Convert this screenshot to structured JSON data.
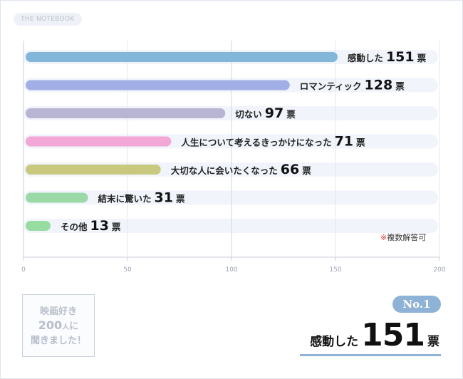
{
  "brand": "THE NOTEBOOK",
  "note": {
    "mark": "※",
    "text": "複数解答可"
  },
  "survey_badge": {
    "line1": "映画好き",
    "line2_number": "200",
    "line2_unit": "人",
    "line2_tail": "に",
    "line3": "聞きました！"
  },
  "winner": {
    "badge": "No.1",
    "label": "感動した",
    "value": "151",
    "unit": "票"
  },
  "chart_data": {
    "type": "bar",
    "orientation": "horizontal",
    "unit": "票",
    "categories": [
      "感動した",
      "ロマンティック",
      "切ない",
      "人生について考えるきっかけになった",
      "大切な人に会いたくなった",
      "結末に驚いた",
      "その他"
    ],
    "values": [
      151,
      128,
      97,
      71,
      66,
      31,
      13
    ],
    "colors": [
      "#82b7d9",
      "#a2aee6",
      "#b8b5d3",
      "#f2a7d6",
      "#c8c97e",
      "#9bd9a8",
      "#97dca0"
    ],
    "xlim": [
      0,
      200
    ],
    "xticks": [
      0,
      50,
      100,
      150,
      200
    ],
    "grid": true,
    "title": "",
    "xlabel": "",
    "ylabel": ""
  }
}
